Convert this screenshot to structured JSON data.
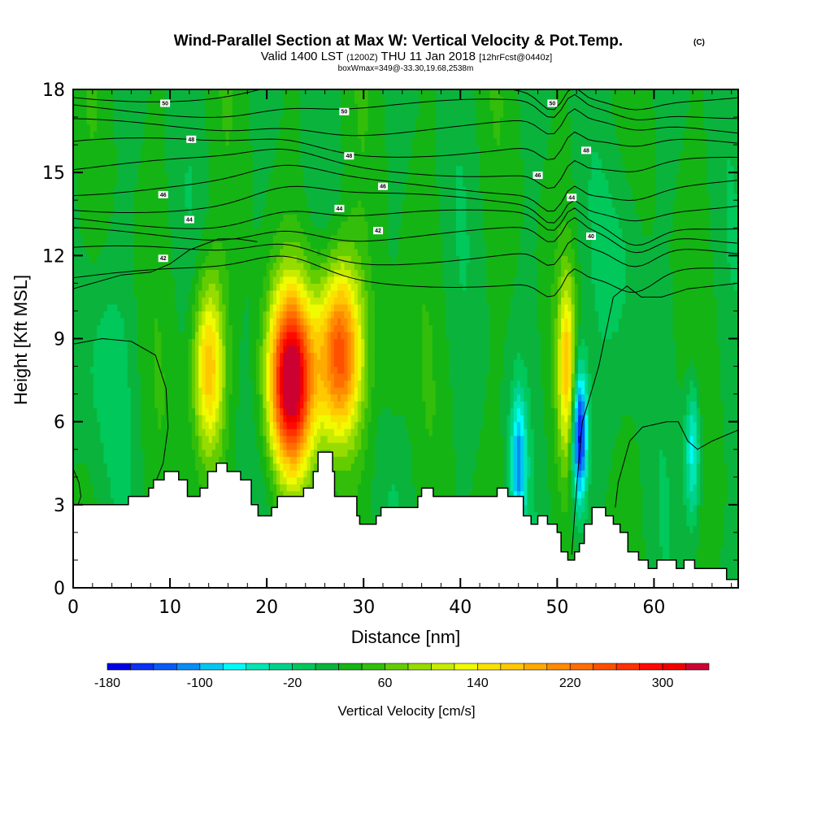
{
  "chart_data": {
    "type": "heatmap",
    "title": "Wind-Parallel Section at Max W: Vertical Velocity & Pot.Temp.",
    "title_suffix": "(C)",
    "subtitle_parts": [
      "Valid 1400 LST",
      "(1200Z)",
      "THU 11 Jan 2018",
      "[12hrFcst@0440z]"
    ],
    "annotation": "boxWmax=349@-33.30,19.68,2538m",
    "xlabel": "Distance [nm]",
    "ylabel": "Height [Kft MSL]",
    "xlim": [
      0,
      68.7
    ],
    "ylim": [
      0,
      18
    ],
    "x_ticks": [
      0,
      10,
      20,
      30,
      40,
      50,
      60
    ],
    "x_minor_step": 2,
    "y_ticks": [
      0,
      3,
      6,
      9,
      12,
      15,
      18
    ],
    "y_minor_step": 1,
    "colorbar": {
      "label": "Vertical Velocity [cm/s]",
      "min": -180,
      "max": 340,
      "step": 20,
      "tick_labels": [
        -180,
        -100,
        -20,
        60,
        140,
        220,
        300
      ],
      "colors": [
        "#0000e6",
        "#0a32f0",
        "#0a5af5",
        "#0a8cf5",
        "#00c8f0",
        "#00fafa",
        "#00e6b4",
        "#00d28c",
        "#00c85a",
        "#0ab43c",
        "#14b414",
        "#32be0a",
        "#64cd00",
        "#96dc00",
        "#c8eb00",
        "#f0fa00",
        "#fae100",
        "#ffc800",
        "#ffaa00",
        "#ff8c00",
        "#ff6e00",
        "#ff5000",
        "#ff3200",
        "#ff0a00",
        "#f00000",
        "#cd0032"
      ]
    },
    "vertical_velocity_features": [
      {
        "name": "updraft-plume-1",
        "x_nm": 14,
        "z_kft": 8,
        "peak_cms": 180
      },
      {
        "name": "updraft-plume-2",
        "x_nm": 22.5,
        "z_kft": 7.5,
        "peak_cms": 349
      },
      {
        "name": "updraft-plume-3",
        "x_nm": 27.5,
        "z_kft": 8.5,
        "peak_cms": 260
      },
      {
        "name": "updraft-plume-4",
        "x_nm": 51,
        "z_kft": 8,
        "peak_cms": 160
      },
      {
        "name": "downdraft-1",
        "x_nm": 52.3,
        "z_kft": 5.5,
        "peak_cms": -180
      },
      {
        "name": "downdraft-2",
        "x_nm": 46,
        "z_kft": 4.5,
        "peak_cms": -100
      },
      {
        "name": "downdraft-3",
        "x_nm": 64,
        "z_kft": 5,
        "peak_cms": -80
      }
    ],
    "potential_temperature": {
      "units": "C",
      "contour_labels": [
        {
          "text": "50",
          "x_nm": 9.5,
          "z_kft": 17.5
        },
        {
          "text": "48",
          "x_nm": 12.2,
          "z_kft": 16.2
        },
        {
          "text": "46",
          "x_nm": 9.3,
          "z_kft": 14.2
        },
        {
          "text": "44",
          "x_nm": 12,
          "z_kft": 13.3
        },
        {
          "text": "42",
          "x_nm": 9.3,
          "z_kft": 11.9
        },
        {
          "text": "50",
          "x_nm": 28,
          "z_kft": 17.2
        },
        {
          "text": "48",
          "x_nm": 28.5,
          "z_kft": 15.6
        },
        {
          "text": "46",
          "x_nm": 32,
          "z_kft": 14.5
        },
        {
          "text": "44",
          "x_nm": 27.5,
          "z_kft": 13.7
        },
        {
          "text": "42",
          "x_nm": 31.5,
          "z_kft": 12.9
        },
        {
          "text": "50",
          "x_nm": 49.5,
          "z_kft": 17.5
        },
        {
          "text": "48",
          "x_nm": 53,
          "z_kft": 15.8
        },
        {
          "text": "46",
          "x_nm": 48,
          "z_kft": 14.9
        },
        {
          "text": "44",
          "x_nm": 51.5,
          "z_kft": 14.1
        },
        {
          "text": "40",
          "x_nm": 53.5,
          "z_kft": 12.7
        }
      ]
    },
    "terrain_kft": [
      [
        0,
        3.0
      ],
      [
        3.5,
        3.0
      ],
      [
        5.7,
        3.3
      ],
      [
        7.8,
        3.6
      ],
      [
        8.3,
        3.9
      ],
      [
        9.4,
        4.2
      ],
      [
        10.9,
        3.9
      ],
      [
        11.8,
        3.3
      ],
      [
        13.1,
        3.6
      ],
      [
        13.9,
        4.2
      ],
      [
        14.8,
        4.5
      ],
      [
        15.9,
        4.2
      ],
      [
        17.3,
        3.9
      ],
      [
        18.4,
        3.0
      ],
      [
        19.1,
        2.6
      ],
      [
        20.5,
        2.9
      ],
      [
        21.1,
        3.3
      ],
      [
        23.8,
        3.6
      ],
      [
        24.8,
        4.2
      ],
      [
        25.3,
        4.9
      ],
      [
        26.8,
        4.2
      ],
      [
        27.0,
        3.3
      ],
      [
        29.3,
        2.6
      ],
      [
        29.6,
        2.3
      ],
      [
        31.3,
        2.6
      ],
      [
        31.8,
        2.9
      ],
      [
        35.6,
        3.3
      ],
      [
        36.0,
        3.6
      ],
      [
        37.2,
        3.3
      ],
      [
        43.8,
        3.6
      ],
      [
        44.9,
        3.3
      ],
      [
        46.5,
        2.6
      ],
      [
        47.3,
        2.3
      ],
      [
        48.0,
        2.6
      ],
      [
        49.0,
        2.3
      ],
      [
        50.0,
        2.0
      ],
      [
        50.4,
        1.3
      ],
      [
        51.1,
        1.0
      ],
      [
        51.8,
        1.3
      ],
      [
        52.3,
        1.6
      ],
      [
        52.8,
        2.3
      ],
      [
        53.6,
        2.9
      ],
      [
        55.0,
        2.6
      ],
      [
        55.8,
        2.3
      ],
      [
        56.5,
        2.0
      ],
      [
        57.3,
        1.3
      ],
      [
        58.4,
        1.0
      ],
      [
        59.4,
        0.7
      ],
      [
        60.3,
        1.0
      ],
      [
        62.3,
        0.7
      ],
      [
        63.1,
        1.0
      ],
      [
        64.2,
        0.7
      ],
      [
        66.9,
        0.7
      ],
      [
        67.5,
        0.3
      ],
      [
        68.7,
        0.3
      ]
    ]
  }
}
